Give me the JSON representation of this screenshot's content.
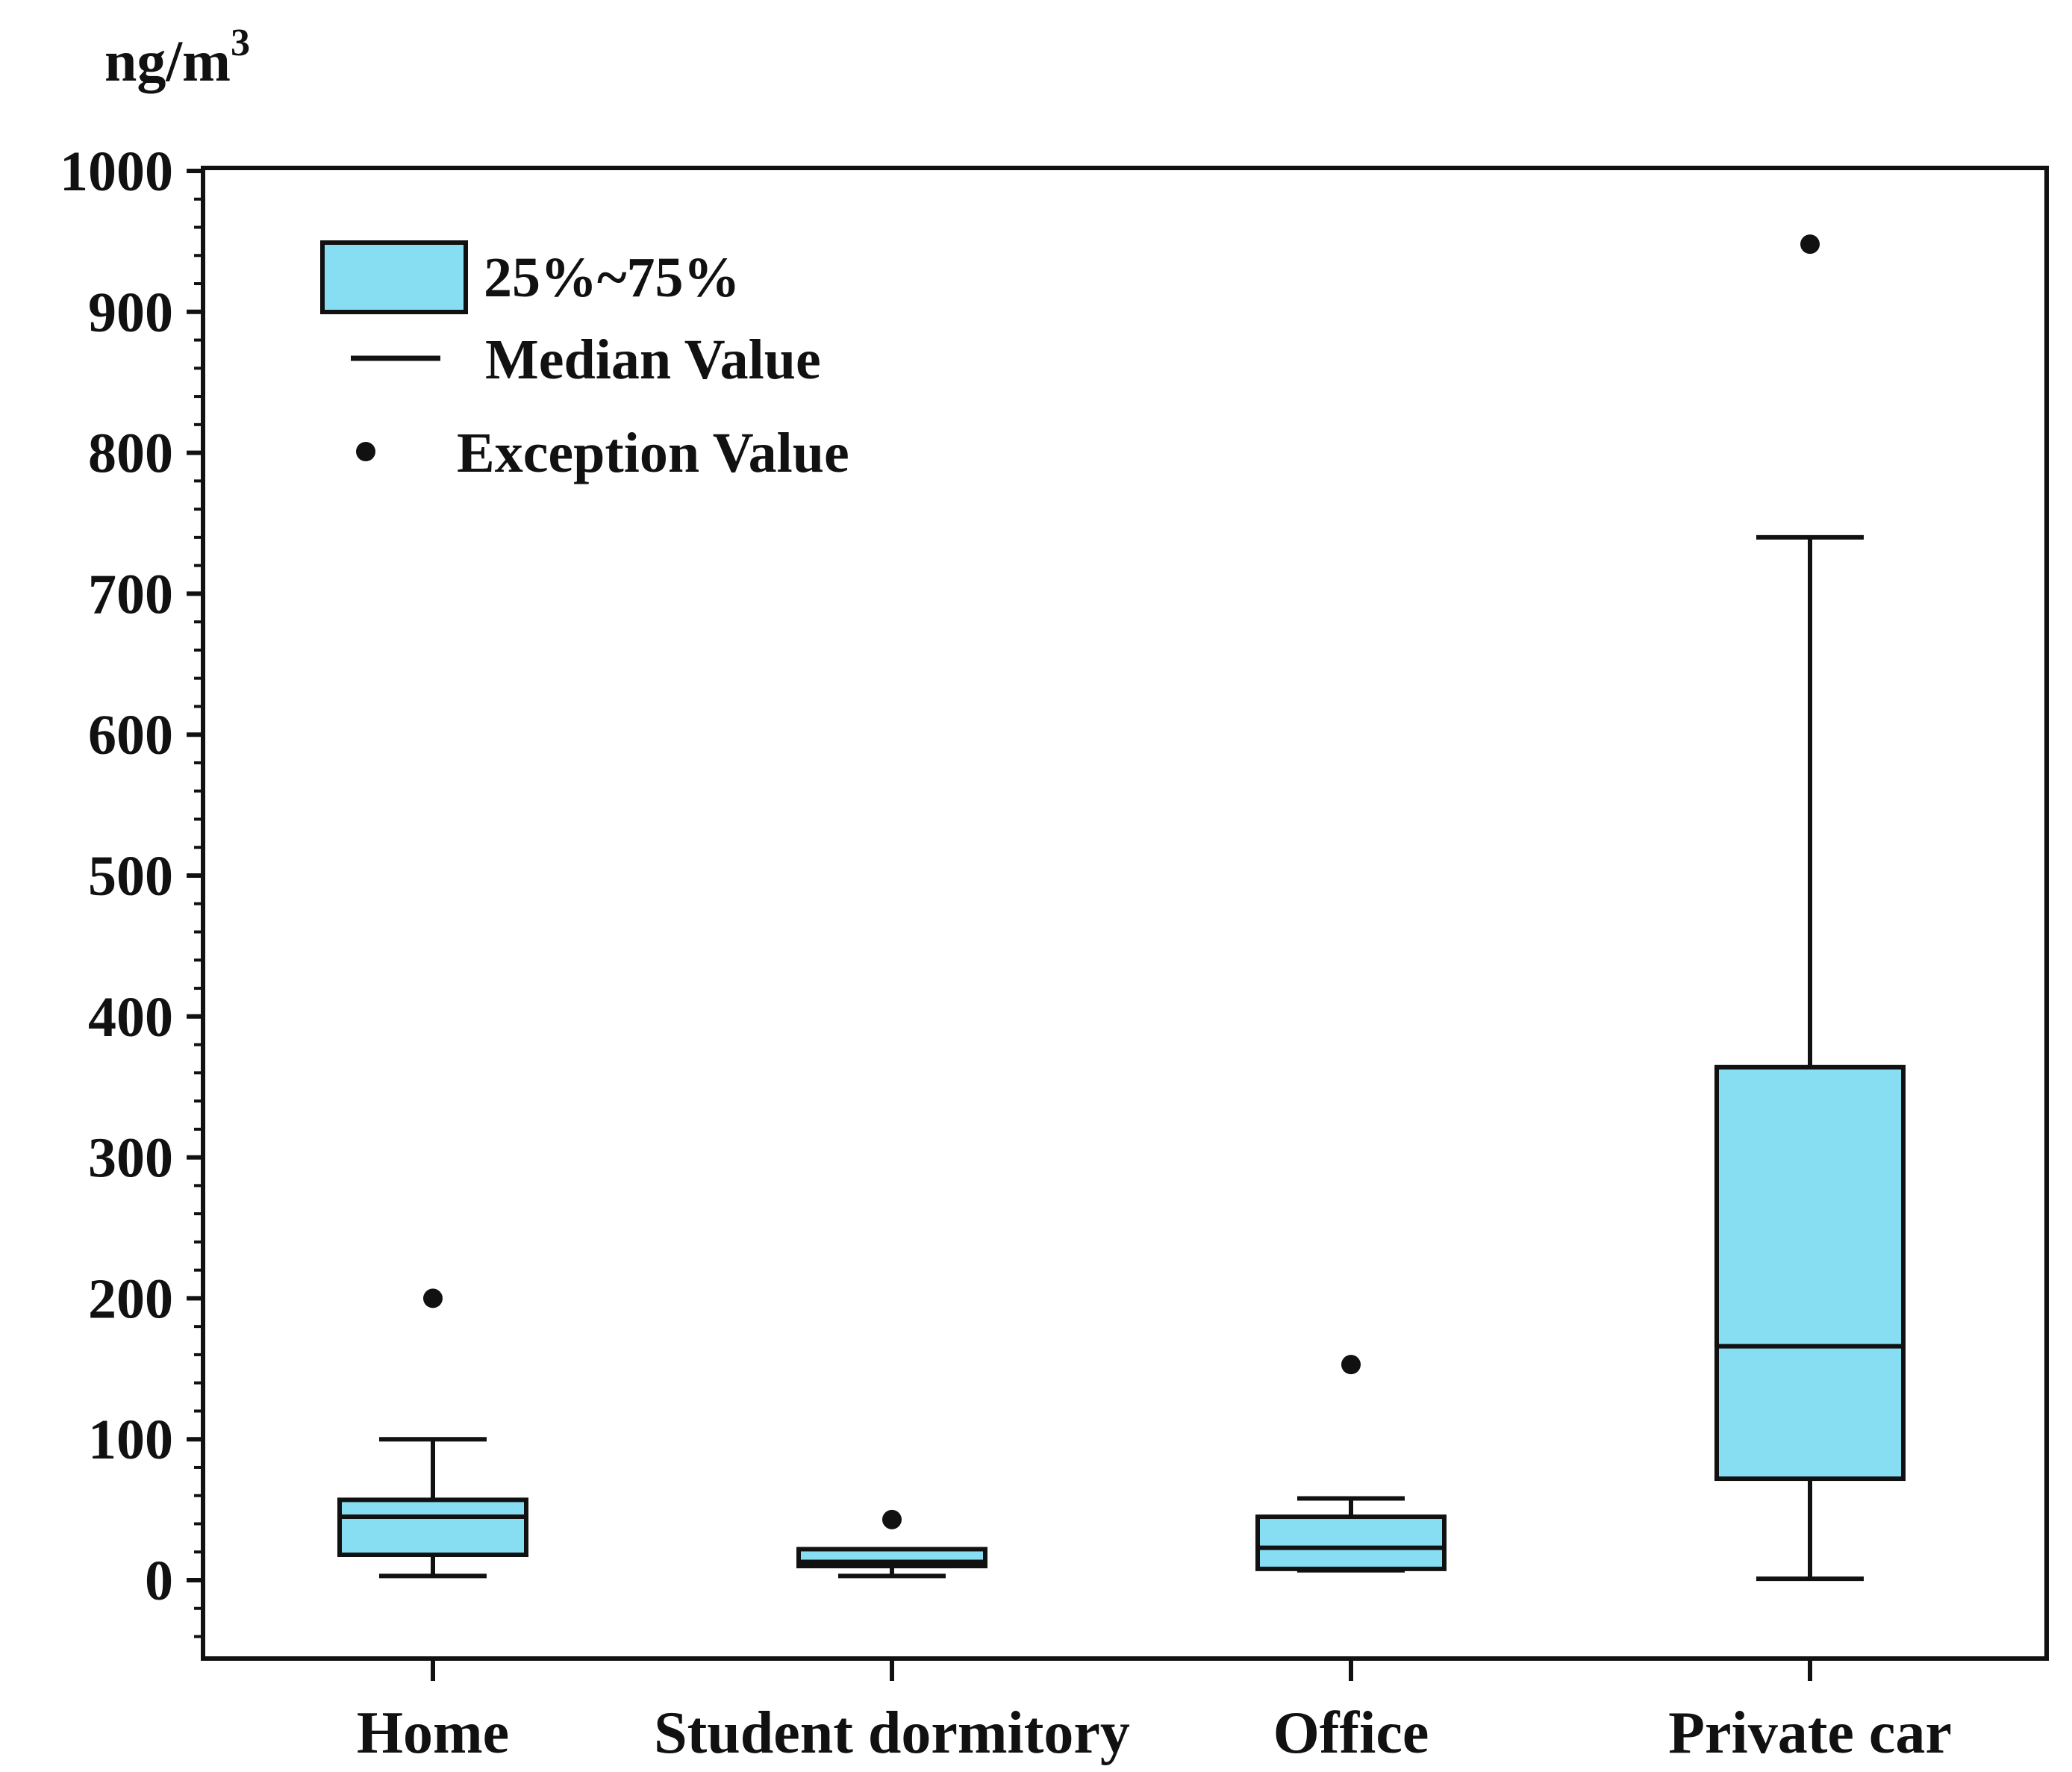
{
  "chart_data": {
    "type": "boxplot",
    "unit_label": "ng/m",
    "unit_superscript": "3",
    "ylim": [
      -100,
      1000
    ],
    "y_ticks": [
      0,
      100,
      200,
      300,
      400,
      500,
      600,
      700,
      800,
      900,
      1000
    ],
    "y_tick_labels": [
      "0",
      "100",
      "200",
      "300",
      "400",
      "500",
      "600",
      "700",
      "800",
      "900",
      "1000"
    ],
    "y_minor_step": 20,
    "categories": [
      "Home",
      "Student dormitory",
      "Office",
      "Private car"
    ],
    "boxes": [
      {
        "category": "Home",
        "whisker_low": 3,
        "q1": 18,
        "median": 45,
        "q3": 57,
        "whisker_high": 100,
        "outliers": [
          200
        ]
      },
      {
        "category": "Student dormitory",
        "whisker_low": 3,
        "q1": 10,
        "median": 13,
        "q3": 22,
        "whisker_high": 22,
        "outliers": [
          43
        ]
      },
      {
        "category": "Office",
        "whisker_low": 7,
        "q1": 8,
        "median": 23,
        "q3": 45,
        "whisker_high": 58,
        "outliers": [
          153
        ]
      },
      {
        "category": "Private car",
        "whisker_low": 1,
        "q1": 72,
        "median": 166,
        "q3": 364,
        "whisker_high": 740,
        "outliers": [
          948
        ]
      }
    ],
    "legend": {
      "position": "top-left",
      "items": [
        {
          "kind": "box",
          "label": "25%~75%"
        },
        {
          "kind": "line",
          "label": "Median Value"
        },
        {
          "kind": "dot",
          "label": "Exception Value"
        }
      ]
    },
    "colors": {
      "box_fill": "#87DDF2",
      "stroke": "#111111",
      "background": "#ffffff"
    }
  }
}
